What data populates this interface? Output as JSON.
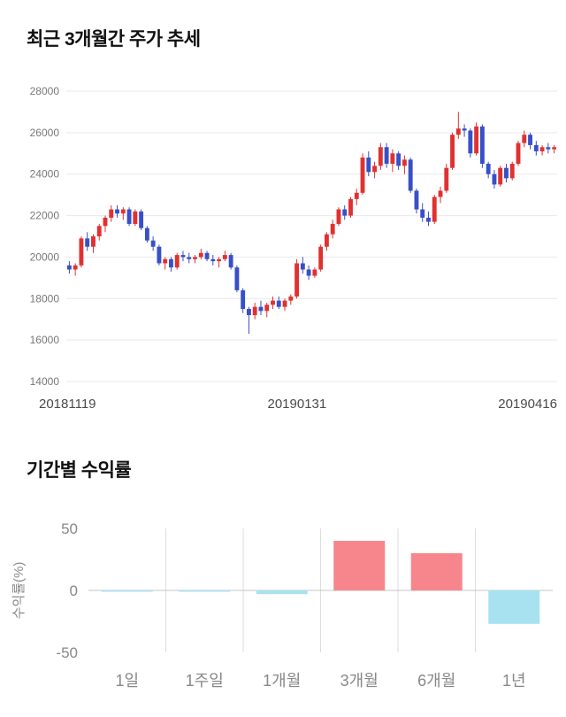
{
  "chart_data": [
    {
      "type": "candlestick",
      "title": "최근 3개월간 주가 추세",
      "ylim": [
        14000,
        28000
      ],
      "y_ticks": [
        28000,
        26000,
        24000,
        22000,
        20000,
        18000,
        16000,
        14000
      ],
      "x_tick_labels": [
        "20181119",
        "20190131",
        "20190416"
      ],
      "up_color": "#e03131",
      "down_color": "#3750c8",
      "grid_color": "#e9e9e9",
      "tick_text_color": "#787878",
      "candles_ohlc": [
        [
          19600,
          19800,
          19200,
          19400
        ],
        [
          19400,
          19700,
          19100,
          19600
        ],
        [
          19600,
          21000,
          19500,
          20900
        ],
        [
          20900,
          21200,
          20300,
          20500
        ],
        [
          20500,
          21100,
          20200,
          21000
        ],
        [
          21000,
          21600,
          20800,
          21500
        ],
        [
          21500,
          22000,
          21200,
          21900
        ],
        [
          21900,
          22500,
          21700,
          22300
        ],
        [
          22300,
          22500,
          21900,
          22100
        ],
        [
          22100,
          22400,
          21800,
          22300
        ],
        [
          22300,
          22400,
          21500,
          21600
        ],
        [
          21600,
          22300,
          21500,
          22200
        ],
        [
          22200,
          22300,
          21300,
          21400
        ],
        [
          21400,
          21500,
          20700,
          20800
        ],
        [
          20800,
          21000,
          20300,
          20500
        ],
        [
          20500,
          20600,
          19600,
          19700
        ],
        [
          19700,
          20000,
          19400,
          19900
        ],
        [
          19900,
          20000,
          19300,
          19500
        ],
        [
          19500,
          20200,
          19400,
          20100
        ],
        [
          20100,
          20300,
          19800,
          20000
        ],
        [
          20000,
          20200,
          19700,
          19900
        ],
        [
          19900,
          20100,
          19700,
          20000
        ],
        [
          20000,
          20400,
          19900,
          20200
        ],
        [
          20200,
          20300,
          19800,
          19900
        ],
        [
          19900,
          20100,
          19600,
          19800
        ],
        [
          19800,
          20000,
          19500,
          19900
        ],
        [
          19900,
          20300,
          19800,
          20100
        ],
        [
          20100,
          20200,
          19400,
          19500
        ],
        [
          19500,
          19600,
          18300,
          18400
        ],
        [
          18400,
          18500,
          17300,
          17500
        ],
        [
          17500,
          17600,
          16300,
          17200
        ],
        [
          17200,
          17800,
          17000,
          17600
        ],
        [
          17600,
          17900,
          17200,
          17400
        ],
        [
          17400,
          17800,
          17100,
          17700
        ],
        [
          17700,
          18100,
          17500,
          17900
        ],
        [
          17900,
          18100,
          17500,
          17600
        ],
        [
          17600,
          18000,
          17400,
          17900
        ],
        [
          17900,
          18200,
          17700,
          18100
        ],
        [
          18100,
          19900,
          18000,
          19700
        ],
        [
          19700,
          20000,
          19200,
          19400
        ],
        [
          19400,
          19600,
          18900,
          19100
        ],
        [
          19100,
          19500,
          19000,
          19400
        ],
        [
          19400,
          20600,
          19300,
          20500
        ],
        [
          20500,
          21200,
          20300,
          21100
        ],
        [
          21100,
          21800,
          20900,
          21600
        ],
        [
          21600,
          22400,
          21500,
          22300
        ],
        [
          22300,
          22500,
          21800,
          22000
        ],
        [
          22000,
          22900,
          21900,
          22800
        ],
        [
          22800,
          23300,
          22500,
          23100
        ],
        [
          23100,
          25000,
          23000,
          24800
        ],
        [
          24800,
          25100,
          23900,
          24100
        ],
        [
          24100,
          24600,
          23800,
          24400
        ],
        [
          24400,
          25500,
          24200,
          25300
        ],
        [
          25300,
          25500,
          24300,
          24500
        ],
        [
          24500,
          25200,
          24100,
          25000
        ],
        [
          25000,
          25100,
          24200,
          24400
        ],
        [
          24400,
          24900,
          24000,
          24700
        ],
        [
          24700,
          24800,
          23100,
          23200
        ],
        [
          23200,
          23300,
          22100,
          22300
        ],
        [
          22300,
          22600,
          21700,
          21900
        ],
        [
          21900,
          22200,
          21500,
          21700
        ],
        [
          21700,
          23000,
          21600,
          22900
        ],
        [
          22900,
          23400,
          22600,
          23200
        ],
        [
          23200,
          24500,
          23100,
          24300
        ],
        [
          24300,
          26000,
          24200,
          25900
        ],
        [
          25900,
          27000,
          25700,
          26200
        ],
        [
          26200,
          26400,
          25800,
          26100
        ],
        [
          26100,
          26200,
          24800,
          25000
        ],
        [
          25000,
          26500,
          24900,
          26300
        ],
        [
          26300,
          26400,
          24300,
          24500
        ],
        [
          24500,
          24600,
          23800,
          24000
        ],
        [
          24000,
          24200,
          23300,
          23500
        ],
        [
          23500,
          24400,
          23400,
          24300
        ],
        [
          24300,
          24500,
          23600,
          23800
        ],
        [
          23800,
          24600,
          23700,
          24500
        ],
        [
          24500,
          25600,
          24400,
          25500
        ],
        [
          25500,
          26100,
          25300,
          25900
        ],
        [
          25900,
          26000,
          25200,
          25400
        ],
        [
          25400,
          25600,
          24900,
          25100
        ],
        [
          25100,
          25400,
          24900,
          25300
        ],
        [
          25300,
          25500,
          25000,
          25200
        ],
        [
          25200,
          25400,
          25000,
          25300
        ]
      ]
    },
    {
      "type": "bar",
      "title": "기간별 수익률",
      "ylabel": "수익률(%)",
      "ylim": [
        -50,
        50
      ],
      "y_ticks": [
        50,
        0,
        -50
      ],
      "categories": [
        "1일",
        "1주일",
        "1개월",
        "3개월",
        "6개월",
        "1년"
      ],
      "values": [
        -0.4,
        -1,
        -3,
        40,
        30,
        -27
      ],
      "positive_color": "#f7868c",
      "negative_color": "#a8e2f0",
      "grid_color": "#dddddd",
      "zero_line_color": "#c4c4c4",
      "tick_text_color": "#888888"
    }
  ]
}
